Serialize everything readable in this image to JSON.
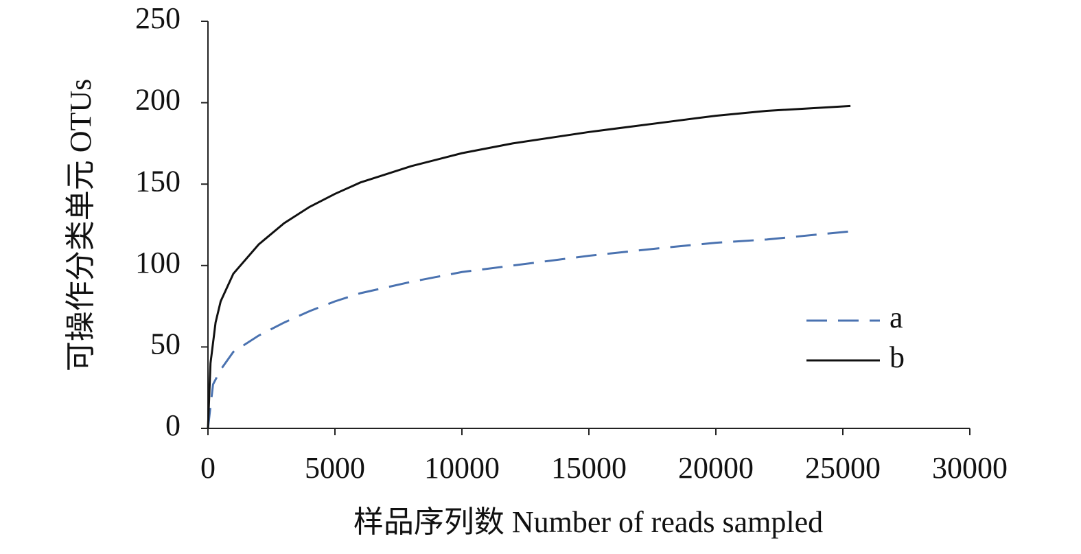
{
  "chart_data": {
    "type": "line",
    "xlabel": "样品序列数 Number of reads sampled",
    "ylabel": "可操作分类单元 OTUs",
    "xlim": [
      0,
      30000
    ],
    "xticks": [
      0,
      5000,
      10000,
      15000,
      20000,
      25000,
      30000
    ],
    "ylim": [
      0,
      250
    ],
    "yticks": [
      0,
      50,
      100,
      150,
      200,
      250
    ],
    "legend": "right",
    "series": [
      {
        "name": "a",
        "color": "#4a72b0",
        "dash": true,
        "x": [
          0,
          200,
          500,
          1000,
          2000,
          3000,
          4000,
          5000,
          6000,
          8000,
          10000,
          12000,
          15000,
          18000,
          20000,
          22000,
          25300
        ],
        "values": [
          0,
          27,
          36,
          47,
          57,
          65,
          72,
          78,
          83,
          90,
          96,
          100,
          106,
          111,
          114,
          116,
          121
        ]
      },
      {
        "name": "b",
        "color": "#111111",
        "dash": false,
        "x": [
          0,
          100,
          300,
          500,
          1000,
          2000,
          3000,
          4000,
          5000,
          6000,
          8000,
          10000,
          12000,
          15000,
          18000,
          20000,
          22000,
          25300
        ],
        "values": [
          0,
          40,
          65,
          78,
          95,
          113,
          126,
          136,
          144,
          151,
          161,
          169,
          175,
          182,
          188,
          192,
          195,
          198
        ]
      }
    ]
  }
}
